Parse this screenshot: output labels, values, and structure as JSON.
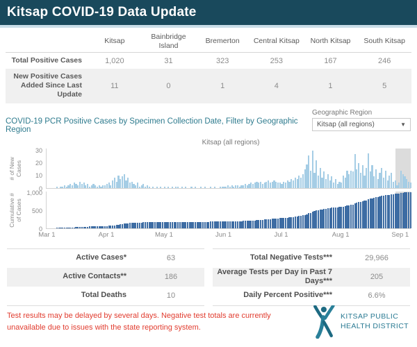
{
  "header": {
    "title": "Kitsap COVID-19 Data Update"
  },
  "region_table": {
    "columns": [
      "Kitsap",
      "Bainbridge Island",
      "Bremerton",
      "Central Kitsap",
      "North Kitsap",
      "South Kitsap"
    ],
    "rows": [
      {
        "label": "Total Positive Cases",
        "values": [
          "1,020",
          "31",
          "323",
          "253",
          "167",
          "246"
        ]
      },
      {
        "label": "New Positive Cases Added Since Last Update",
        "values": [
          "11",
          "0",
          "1",
          "4",
          "1",
          "5"
        ]
      }
    ]
  },
  "chart_section": {
    "title": "COVID-19 PCR Positive Cases by Specimen Collection Date, Filter by Geographic Region",
    "filter_label": "Geographic Region",
    "filter_value": "Kitsap (all regions)",
    "subtitle": "Kitsap (all regions)"
  },
  "chart_data": {
    "type": "bar",
    "title": "Kitsap (all regions)",
    "x_unit": "day",
    "num_days": 190,
    "x_range": [
      "Mar 1",
      "Sep 5"
    ],
    "x_ticks": [
      {
        "label": "Mar 1",
        "day_index": 0
      },
      {
        "label": "Apr 1",
        "day_index": 31
      },
      {
        "label": "May 1",
        "day_index": 61
      },
      {
        "label": "Jun 1",
        "day_index": 92
      },
      {
        "label": "Jul 1",
        "day_index": 122
      },
      {
        "label": "Aug 1",
        "day_index": 153
      },
      {
        "label": "Sep 1",
        "day_index": 184
      }
    ],
    "shaded_recent_from_index": 182,
    "shade_color": "#dcdcdc",
    "panels": [
      {
        "name": "# of New Cases",
        "axis_label_lines": [
          "# of New",
          "Cases"
        ],
        "color": "#a5cde5",
        "ylim": [
          0,
          32
        ],
        "yticks": [
          {
            "label": "0",
            "value": 0
          },
          {
            "label": "10",
            "value": 10
          },
          {
            "label": "20",
            "value": 20
          },
          {
            "label": "30",
            "value": 30
          }
        ],
        "values": [
          0,
          0,
          0,
          0,
          0,
          1,
          0,
          1,
          1,
          2,
          1,
          2,
          3,
          2,
          4,
          3,
          2,
          5,
          3,
          4,
          2,
          3,
          1,
          2,
          3,
          2,
          1,
          2,
          1,
          2,
          2,
          3,
          4,
          2,
          6,
          8,
          5,
          10,
          7,
          9,
          11,
          6,
          8,
          4,
          5,
          3,
          2,
          4,
          1,
          2,
          3,
          1,
          2,
          1,
          0,
          1,
          0,
          1,
          0,
          1,
          0,
          1,
          0,
          1,
          0,
          1,
          0,
          1,
          1,
          0,
          1,
          0,
          1,
          0,
          0,
          1,
          0,
          1,
          0,
          0,
          1,
          0,
          1,
          0,
          0,
          1,
          0,
          1,
          0,
          0,
          1,
          1,
          1,
          1,
          2,
          1,
          2,
          1,
          2,
          2,
          1,
          2,
          2,
          3,
          2,
          3,
          4,
          3,
          4,
          5,
          4,
          5,
          3,
          4,
          5,
          6,
          4,
          5,
          6,
          5,
          4,
          4,
          3,
          5,
          4,
          6,
          5,
          7,
          6,
          8,
          7,
          10,
          8,
          11,
          15,
          19,
          26,
          14,
          30,
          12,
          22,
          10,
          16,
          8,
          13,
          7,
          11,
          6,
          9,
          4,
          7,
          3,
          5,
          4,
          10,
          8,
          14,
          11,
          14,
          13,
          27,
          15,
          20,
          12,
          18,
          10,
          16,
          28,
          13,
          18,
          9,
          15,
          7,
          12,
          16,
          8,
          14,
          6,
          10,
          12,
          5,
          6,
          2,
          4,
          14,
          11,
          9,
          7,
          5,
          4
        ]
      },
      {
        "name": "Cumulative # of Cases",
        "axis_label_lines": [
          "Cumulative #",
          "of Cases"
        ],
        "color": "#3d6ca3",
        "ylim": [
          0,
          1040
        ],
        "yticks": [
          {
            "label": "0",
            "value": 0
          },
          {
            "label": "500",
            "value": 500
          },
          {
            "label": "1,000",
            "value": 1000
          }
        ],
        "values": "cumulative_of_panel_0",
        "final_value": 1020
      }
    ]
  },
  "stats_left": {
    "rows": [
      {
        "label": "Active Cases*",
        "value": "63"
      },
      {
        "label": "Active Contacts**",
        "value": "186"
      },
      {
        "label": "Total Deaths",
        "value": "10"
      }
    ]
  },
  "stats_right": {
    "rows": [
      {
        "label": "Total Negative Tests***",
        "value": "29,966"
      },
      {
        "label": "Average Tests per Day in Past 7 Days***",
        "value": "205"
      },
      {
        "label": "Daily Percent Positive***",
        "value": "6.6%"
      }
    ]
  },
  "footer": {
    "notice": "Test results may be delayed by several days. Negative test totals  are currently unavailable due to issues with the state reporting system.",
    "logo": {
      "line1": "KITSAP PUBLIC",
      "line2": "HEALTH DISTRICT"
    }
  },
  "colors": {
    "header_bg": "#19495c",
    "header_strip": "#c9dde8",
    "section_title_teal": "#2e7b8e",
    "new_cases_bar": "#a5cde5",
    "cumulative_bar": "#3d6ca3",
    "recent_shade": "#dcdcdc",
    "notice_red": "#e13c2f",
    "logo_teal": "#2a7a93"
  }
}
